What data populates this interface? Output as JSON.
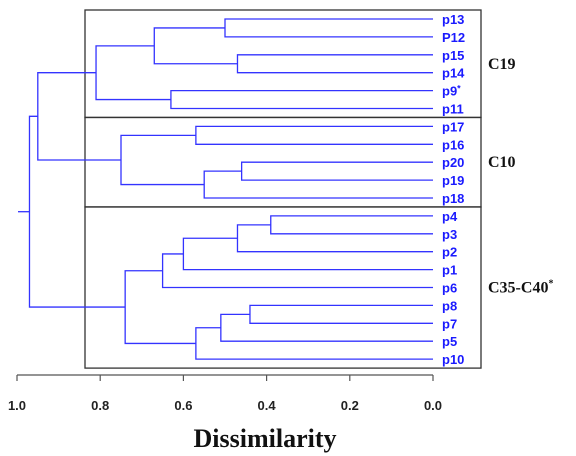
{
  "chart_data": {
    "type": "dendrogram",
    "xlabel": "Dissimilarity",
    "xlim": [
      1.0,
      0.0
    ],
    "x_ticks": [
      "1.0",
      "0.8",
      "0.6",
      "0.4",
      "0.2",
      "0.0"
    ],
    "x_tick_values": [
      1.0,
      0.8,
      0.6,
      0.4,
      0.2,
      0.0
    ],
    "leaves": [
      {
        "label": "p13",
        "sup": ""
      },
      {
        "label": "P12",
        "sup": ""
      },
      {
        "label": "p15",
        "sup": ""
      },
      {
        "label": "p14",
        "sup": ""
      },
      {
        "label": "p9",
        "sup": "*"
      },
      {
        "label": "p11",
        "sup": ""
      },
      {
        "label": "p17",
        "sup": ""
      },
      {
        "label": "p16",
        "sup": ""
      },
      {
        "label": "p20",
        "sup": ""
      },
      {
        "label": "p19",
        "sup": ""
      },
      {
        "label": "p18",
        "sup": ""
      },
      {
        "label": "p4",
        "sup": ""
      },
      {
        "label": "p3",
        "sup": ""
      },
      {
        "label": "p2",
        "sup": ""
      },
      {
        "label": "p1",
        "sup": ""
      },
      {
        "label": "p6",
        "sup": ""
      },
      {
        "label": "p8",
        "sup": ""
      },
      {
        "label": "p7",
        "sup": ""
      },
      {
        "label": "p5",
        "sup": ""
      },
      {
        "label": "p10",
        "sup": ""
      }
    ],
    "merges": [
      {
        "id": "m1",
        "left": 0,
        "right": 1,
        "height": 0.5
      },
      {
        "id": "m2",
        "left": 2,
        "right": 3,
        "height": 0.47
      },
      {
        "id": "m3",
        "left": "m1",
        "right": "m2",
        "height": 0.67
      },
      {
        "id": "m4",
        "left": 4,
        "right": 5,
        "height": 0.63
      },
      {
        "id": "m5",
        "left": "m3",
        "right": "m4",
        "height": 0.81
      },
      {
        "id": "m6",
        "left": 6,
        "right": 7,
        "height": 0.57
      },
      {
        "id": "m7",
        "left": 8,
        "right": 9,
        "height": 0.46
      },
      {
        "id": "m8",
        "left": "m7",
        "right": 10,
        "height": 0.55
      },
      {
        "id": "m9",
        "left": "m6",
        "right": "m8",
        "height": 0.75
      },
      {
        "id": "m10",
        "left": "m5",
        "right": "m9",
        "height": 0.95
      },
      {
        "id": "m11",
        "left": 11,
        "right": 12,
        "height": 0.39
      },
      {
        "id": "m12",
        "left": "m11",
        "right": 13,
        "height": 0.47
      },
      {
        "id": "m13",
        "left": "m12",
        "right": 14,
        "height": 0.6
      },
      {
        "id": "m14",
        "left": "m13",
        "right": 15,
        "height": 0.65
      },
      {
        "id": "m15",
        "left": 16,
        "right": 17,
        "height": 0.44
      },
      {
        "id": "m16",
        "left": "m15",
        "right": 18,
        "height": 0.51
      },
      {
        "id": "m17",
        "left": "m16",
        "right": 19,
        "height": 0.57
      },
      {
        "id": "m18",
        "left": "m14",
        "right": "m17",
        "height": 0.74
      },
      {
        "id": "m19",
        "left": "m10",
        "right": "m18",
        "height": 0.97
      }
    ],
    "clusters": [
      {
        "label": "C19",
        "sup": "",
        "first_leaf": 0,
        "last_leaf": 5
      },
      {
        "label": "C10",
        "sup": "",
        "first_leaf": 6,
        "last_leaf": 10
      },
      {
        "label": "C35-C40",
        "sup": "*",
        "first_leaf": 11,
        "last_leaf": 19
      }
    ],
    "colors": {
      "branches": "#3333ff",
      "leaf_labels": "#1a1aff",
      "axis": "#555555",
      "boxes": "#333333"
    }
  }
}
